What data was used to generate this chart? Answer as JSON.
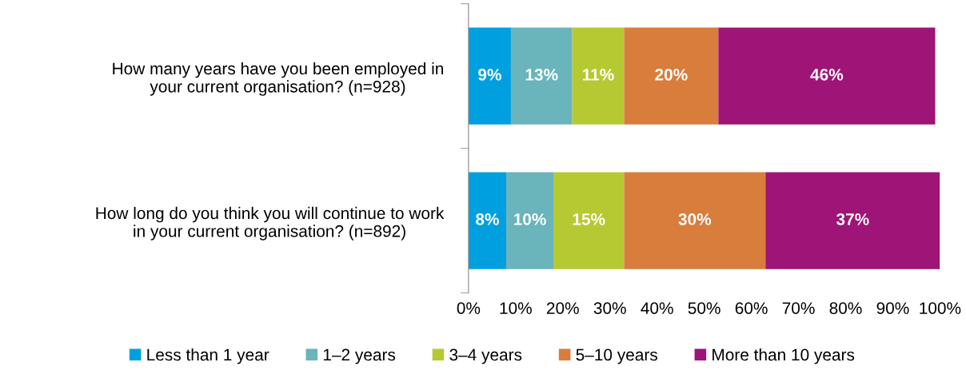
{
  "chart_data": {
    "type": "bar",
    "orientation": "horizontal",
    "stacked": true,
    "categories": [
      "How many years have you been employed in\nyour current organisation? (n=928)",
      "How long do you think you will continue to work\nin your current organisation? (n=892)"
    ],
    "series": [
      {
        "name": "Less than 1 year",
        "color": "#00a0e0",
        "values": [
          9,
          8
        ],
        "value_labels": [
          "9%",
          "8%"
        ]
      },
      {
        "name": "1–2 years",
        "color": "#6ab4bc",
        "values": [
          13,
          10
        ],
        "value_labels": [
          "13%",
          "10%"
        ]
      },
      {
        "name": "3–4 years",
        "color": "#b6c932",
        "values": [
          11,
          15
        ],
        "value_labels": [
          "11%",
          "15%"
        ]
      },
      {
        "name": "5–10 years",
        "color": "#d87d3c",
        "values": [
          20,
          30
        ],
        "value_labels": [
          "20%",
          "30%"
        ]
      },
      {
        "name": "More than 10 years",
        "color": "#9e1477",
        "values": [
          46,
          37
        ],
        "value_labels": [
          "46%",
          "37%"
        ]
      }
    ],
    "xlim": [
      0,
      100
    ],
    "xticks": [
      {
        "value": 0,
        "label": "0%"
      },
      {
        "value": 10,
        "label": "10%"
      },
      {
        "value": 20,
        "label": "20%"
      },
      {
        "value": 30,
        "label": "30%"
      },
      {
        "value": 40,
        "label": "40%"
      },
      {
        "value": 50,
        "label": "50%"
      },
      {
        "value": 60,
        "label": "60%"
      },
      {
        "value": 70,
        "label": "70%"
      },
      {
        "value": 80,
        "label": "80%"
      },
      {
        "value": 90,
        "label": "90%"
      },
      {
        "value": 100,
        "label": "100%"
      }
    ],
    "grid": false,
    "legend": "bottom"
  }
}
